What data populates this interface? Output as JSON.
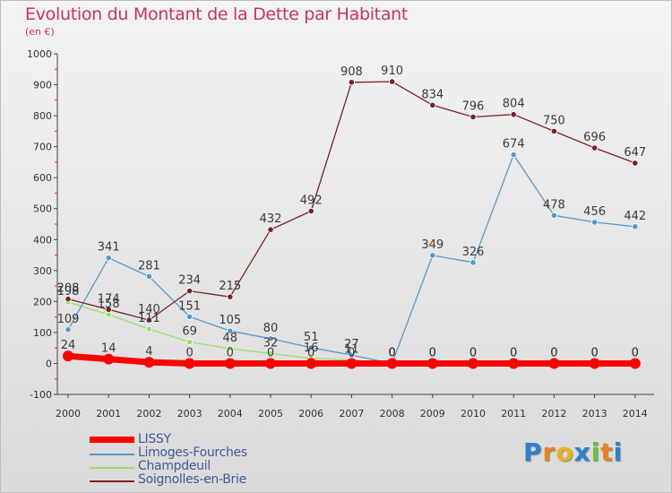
{
  "title": "Evolution du Montant de la Dette par Habitant",
  "unit": "(en €)",
  "colors": {
    "title": "#c83264",
    "axis": "#444444",
    "legend_text": "#3d5a96"
  },
  "logo": {
    "text": "Proxiti",
    "letters": [
      "P",
      "r",
      "o",
      "x",
      "i",
      "t",
      "i"
    ],
    "letter_colors": [
      "#2e7fd0",
      "#e8821e",
      "#e8b21e",
      "#2e7fd0",
      "#6fbf3a",
      "#e8821e",
      "#2e7fd0"
    ]
  },
  "chart_data": {
    "type": "line",
    "title": "Evolution du Montant de la Dette par Habitant",
    "ylabel": "(en €)",
    "x": [
      "2000",
      "2001",
      "2002",
      "2003",
      "2004",
      "2005",
      "2006",
      "2007",
      "2008",
      "2009",
      "2010",
      "2011",
      "2012",
      "2013",
      "2014"
    ],
    "ylim": [
      -100,
      1000
    ],
    "yticks": [
      "-100",
      "0",
      "100",
      "200",
      "300",
      "400",
      "500",
      "600",
      "700",
      "800",
      "900",
      "1000"
    ],
    "grid": false,
    "legend_position": "bottom-left",
    "series": [
      {
        "name": "LISSY",
        "color": "#ff0000",
        "values": [
          24,
          14,
          4,
          0,
          0,
          0,
          0,
          0,
          0,
          0,
          0,
          0,
          0,
          0,
          0
        ],
        "labels": [
          "24",
          "14",
          "4",
          "0",
          "0",
          "0",
          "0",
          "0",
          "0",
          "0",
          "0",
          "0",
          "0",
          "0",
          "0"
        ]
      },
      {
        "name": "Limoges-Fourches",
        "color": "#5599cc",
        "values": [
          109,
          341,
          281,
          151,
          105,
          80,
          51,
          27,
          0,
          349,
          326,
          674,
          478,
          456,
          442
        ],
        "labels": [
          "109",
          "341",
          "281",
          "151",
          "105",
          "80",
          "51",
          "27",
          "0",
          "349",
          "326",
          "674",
          "478",
          "456",
          "442"
        ]
      },
      {
        "name": "Champdeuil",
        "color": "#99dd66",
        "values": [
          198,
          158,
          111,
          69,
          48,
          32,
          16,
          11,
          0,
          0,
          0,
          0,
          0,
          0,
          0
        ],
        "labels": [
          "198",
          "158",
          "111",
          "69",
          "48",
          "32",
          "16",
          "11",
          "0",
          "0",
          "0",
          "0",
          "0",
          "0",
          "0"
        ]
      },
      {
        "name": "Soignolles-en-Brie",
        "color": "#772222",
        "values": [
          208,
          174,
          140,
          234,
          215,
          432,
          492,
          908,
          910,
          834,
          796,
          804,
          750,
          696,
          647
        ],
        "labels": [
          "208",
          "174",
          "140",
          "234",
          "215",
          "432",
          "492",
          "908",
          "910",
          "834",
          "796",
          "804",
          "750",
          "696",
          "647"
        ]
      }
    ]
  }
}
